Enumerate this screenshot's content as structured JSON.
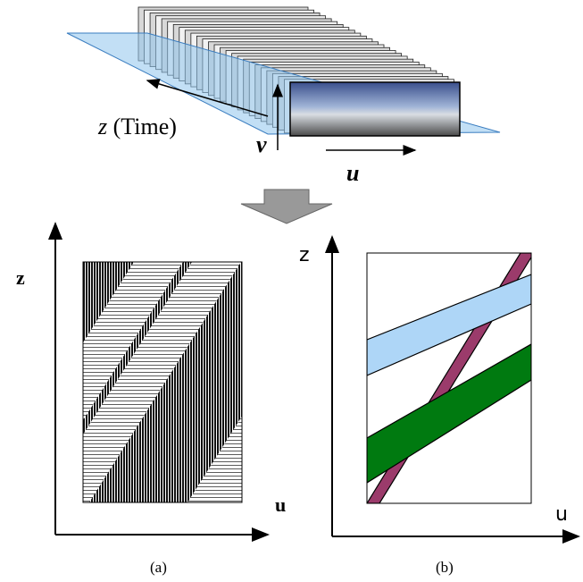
{
  "top": {
    "z_label": "z",
    "time_label": "(Time)",
    "v_label": "v",
    "u_label": "u"
  },
  "panel_a": {
    "z_label": "z",
    "u_label": "u",
    "caption": "(a)"
  },
  "panel_b": {
    "z_label": "z",
    "u_label": "u",
    "caption": "(b)"
  }
}
